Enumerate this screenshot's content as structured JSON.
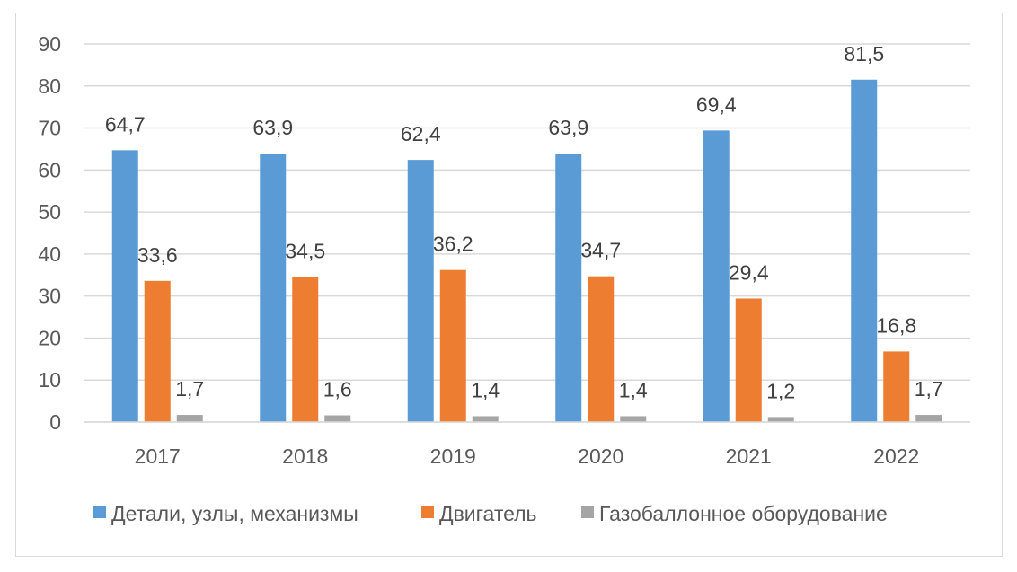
{
  "chart_data": {
    "type": "bar",
    "title": "",
    "xlabel": "",
    "ylabel": "",
    "ylim": [
      0,
      90
    ],
    "ytick_step": 10,
    "grid": true,
    "legend_position": "bottom",
    "categories": [
      "2017",
      "2018",
      "2019",
      "2020",
      "2021",
      "2022"
    ],
    "yticks": [
      "0",
      "10",
      "20",
      "30",
      "40",
      "50",
      "60",
      "70",
      "80",
      "90"
    ],
    "series": [
      {
        "name": "Детали, узлы, механизмы",
        "color": "#5b9bd5",
        "values": [
          64.7,
          63.9,
          62.4,
          63.9,
          69.4,
          81.5
        ],
        "labels": [
          "64,7",
          "63,9",
          "62,4",
          "63,9",
          "69,4",
          "81,5"
        ]
      },
      {
        "name": "Двигатель",
        "color": "#ed7d31",
        "values": [
          33.6,
          34.5,
          36.2,
          34.7,
          29.4,
          16.8
        ],
        "labels": [
          "33,6",
          "34,5",
          "36,2",
          "34,7",
          "29,4",
          "16,8"
        ]
      },
      {
        "name": "Газобаллонное оборудование",
        "color": "#a5a5a5",
        "values": [
          1.7,
          1.6,
          1.4,
          1.4,
          1.2,
          1.7
        ],
        "labels": [
          "1,7",
          "1,6",
          "1,4",
          "1,4",
          "1,2",
          "1,7"
        ]
      }
    ],
    "colors": {
      "grid": "#d9d9d9",
      "axis": "#d9d9d9",
      "frame": "#d9d9d9"
    }
  }
}
